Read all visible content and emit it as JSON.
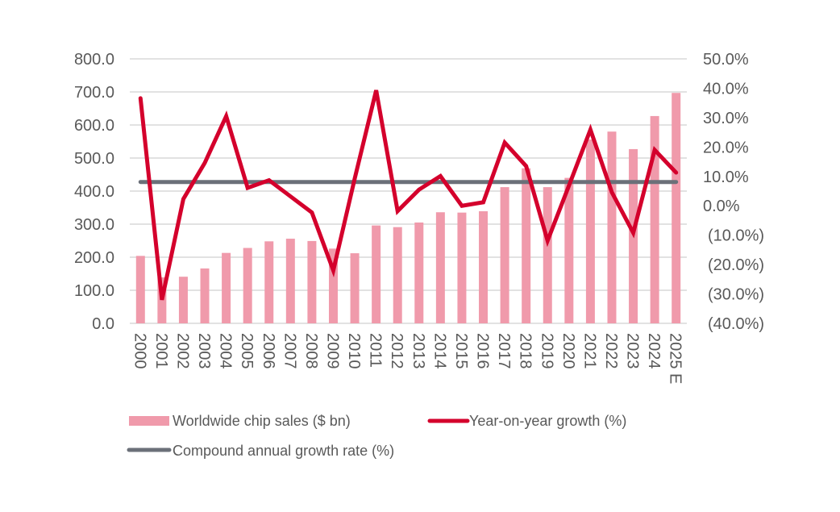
{
  "chart_data": {
    "type": "bar",
    "title": "",
    "xlabel": "",
    "ylabel": "",
    "categories": [
      "2000",
      "2001",
      "2002",
      "2003",
      "2004",
      "2005",
      "2006",
      "2007",
      "2008",
      "2009",
      "2010",
      "2011",
      "2012",
      "2013",
      "2014",
      "2015",
      "2016",
      "2017",
      "2018",
      "2019",
      "2020",
      "2021",
      "2022",
      "2023",
      "2024",
      "2025 E"
    ],
    "series": [
      {
        "name": "Worldwide chip sales ($ bn)",
        "type": "bar",
        "axis": "left",
        "color": "#f09aab",
        "values": [
          204,
          139,
          141,
          166,
          213,
          228,
          248,
          256,
          249,
          226,
          212,
          296,
          291,
          305,
          336,
          335,
          339,
          412,
          469,
          412,
          440,
          556,
          580,
          527,
          627,
          697
        ]
      },
      {
        "name": "Year-on-year growth  (%)",
        "type": "line",
        "axis": "right",
        "color": "#d4002c",
        "values": [
          36.6,
          -32.0,
          2.3,
          14.6,
          30.5,
          6.1,
          8.7,
          3.2,
          -2.3,
          -22.0,
          9.3,
          39.3,
          -1.8,
          5.5,
          10.1,
          0.0,
          1.2,
          21.5,
          13.5,
          -11.9,
          6.9,
          25.9,
          4.6,
          -9.2,
          19.0,
          11.3
        ]
      },
      {
        "name": "Compound annual growth rate (%)",
        "type": "line",
        "axis": "right",
        "color": "#6b7079",
        "values": [
          8.1,
          8.1,
          8.1,
          8.1,
          8.1,
          8.1,
          8.1,
          8.1,
          8.1,
          8.1,
          8.1,
          8.1,
          8.1,
          8.1,
          8.1,
          8.1,
          8.1,
          8.1,
          8.1,
          8.1,
          8.1,
          8.1,
          8.1,
          8.1,
          8.1,
          8.1
        ]
      }
    ],
    "y_left": {
      "ylim": [
        0,
        800
      ],
      "ticks": [
        0,
        100,
        200,
        300,
        400,
        500,
        600,
        700,
        800
      ],
      "tick_labels": [
        "0.0",
        "100.0",
        "200.0",
        "300.0",
        "400.0",
        "500.0",
        "600.0",
        "700.0",
        "800.0"
      ]
    },
    "y_right": {
      "ylim": [
        -40,
        50
      ],
      "ticks": [
        -40,
        -30,
        -20,
        -10,
        0,
        10,
        20,
        30,
        40,
        50
      ],
      "tick_labels": [
        "(40.0%)",
        "(30.0%)",
        "(20.0%)",
        "(10.0%)",
        "0.0%",
        "10.0%",
        "20.0%",
        "30.0%",
        "40.0%",
        "50.0%"
      ]
    },
    "grid": true,
    "gridline_color": "#d9d9d9",
    "legend_position": "bottom",
    "legend": [
      {
        "label": "Worldwide chip sales ($ bn)",
        "marker": "bar",
        "color": "#f09aab"
      },
      {
        "label": "Year-on-year growth  (%)",
        "marker": "line",
        "color": "#d4002c"
      },
      {
        "label": "Compound annual growth rate (%)",
        "marker": "line",
        "color": "#6b7079"
      }
    ]
  }
}
